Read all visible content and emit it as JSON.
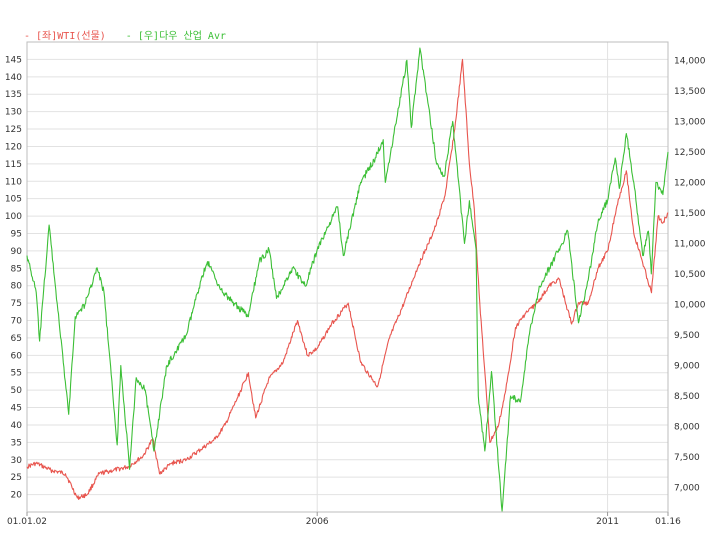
{
  "chart_data": {
    "type": "line",
    "legend": [
      {
        "label": "- [좌]WTI(선물)",
        "color": "#e8554e"
      },
      {
        "label": "- [우]다우 산업 Avr",
        "color": "#3cbf36"
      }
    ],
    "x_tick_labels": [
      "01.01.02",
      "2006",
      "2011",
      "01.16"
    ],
    "x_tick_dates": [
      "2001-01-02",
      "2006-01-01",
      "2011-01-01",
      "2012-01-16"
    ],
    "xlim": [
      "2001-01-02",
      "2012-01-16"
    ],
    "y_left": {
      "ylim": [
        15,
        150
      ],
      "ticks": [
        20,
        25,
        30,
        35,
        40,
        45,
        50,
        55,
        60,
        65,
        70,
        75,
        80,
        85,
        90,
        95,
        100,
        105,
        110,
        115,
        120,
        125,
        130,
        135,
        140,
        145
      ],
      "tick_labels": [
        "20",
        "25",
        "30",
        "35",
        "40",
        "45",
        "50",
        "55",
        "60",
        "65",
        "70",
        "75",
        "80",
        "85",
        "90",
        "95",
        "100",
        "105",
        "110",
        "115",
        "120",
        "125",
        "130",
        "135",
        "140",
        "145"
      ]
    },
    "y_right": {
      "ylim": [
        6600,
        14300
      ],
      "ticks": [
        7000,
        7500,
        8000,
        8500,
        9000,
        9500,
        10000,
        10500,
        11000,
        11500,
        12000,
        12500,
        13000,
        13500,
        14000
      ],
      "tick_labels": [
        "7,000",
        "7,500",
        "8,000",
        "8,500",
        "9,000",
        "9,500",
        "10,000",
        "10,500",
        "11,000",
        "11,500",
        "12,000",
        "12,500",
        "13,000",
        "13,500",
        "14,000"
      ]
    },
    "grid": true,
    "series": [
      {
        "name": "[좌]WTI(선물)",
        "axis": "left",
        "color": "#e8554e",
        "x": [
          "2001-01-02",
          "2001-03-01",
          "2001-06-01",
          "2001-09-01",
          "2001-11-15",
          "2002-01-15",
          "2002-04-01",
          "2002-07-01",
          "2002-10-01",
          "2003-01-01",
          "2003-03-05",
          "2003-04-15",
          "2003-07-01",
          "2003-10-01",
          "2004-01-01",
          "2004-04-01",
          "2004-06-01",
          "2004-08-20",
          "2004-10-25",
          "2004-12-10",
          "2005-03-01",
          "2005-06-01",
          "2005-08-30",
          "2005-11-01",
          "2006-01-01",
          "2006-04-01",
          "2006-07-15",
          "2006-10-01",
          "2007-01-15",
          "2007-04-01",
          "2007-07-01",
          "2007-10-01",
          "2007-12-01",
          "2008-01-15",
          "2008-03-15",
          "2008-05-15",
          "2008-07-03",
          "2008-08-15",
          "2008-09-15",
          "2008-10-15",
          "2008-12-01",
          "2008-12-22",
          "2009-02-15",
          "2009-04-01",
          "2009-06-01",
          "2009-08-01",
          "2009-10-15",
          "2010-01-01",
          "2010-03-01",
          "2010-05-20",
          "2010-07-01",
          "2010-09-01",
          "2010-11-01",
          "2011-01-01",
          "2011-03-01",
          "2011-04-29",
          "2011-06-15",
          "2011-08-01",
          "2011-10-04",
          "2011-11-15",
          "2011-12-15",
          "2012-01-16"
        ],
        "values": [
          28,
          29,
          27,
          26,
          19,
          20,
          26,
          27,
          28,
          31,
          36,
          26,
          29,
          30,
          33,
          36,
          40,
          48,
          55,
          42,
          53,
          58,
          70,
          60,
          62,
          69,
          75,
          58,
          51,
          65,
          75,
          86,
          92,
          97,
          106,
          125,
          145,
          115,
          102,
          78,
          48,
          35,
          40,
          50,
          68,
          72,
          75,
          80,
          82,
          69,
          75,
          75,
          85,
          90,
          103,
          113,
          95,
          88,
          78,
          100,
          98,
          101
        ]
      },
      {
        "name": "[우]다우 산업 Avr",
        "axis": "right",
        "color": "#3cbf36",
        "x": [
          "2001-01-02",
          "2001-03-01",
          "2001-03-22",
          "2001-05-21",
          "2001-09-21",
          "2001-11-01",
          "2002-01-01",
          "2002-03-19",
          "2002-05-01",
          "2002-07-23",
          "2002-08-15",
          "2002-10-09",
          "2002-11-20",
          "2003-01-15",
          "2003-03-11",
          "2003-06-01",
          "2003-10-01",
          "2004-01-01",
          "2004-02-11",
          "2004-05-15",
          "2004-10-25",
          "2005-01-01",
          "2005-03-04",
          "2005-04-20",
          "2005-08-01",
          "2005-10-20",
          "2006-01-01",
          "2006-05-10",
          "2006-06-14",
          "2006-10-01",
          "2007-01-01",
          "2007-02-20",
          "2007-03-05",
          "2007-07-19",
          "2007-08-16",
          "2007-10-09",
          "2008-01-22",
          "2008-03-10",
          "2008-05-02",
          "2008-07-15",
          "2008-08-15",
          "2008-09-26",
          "2008-10-10",
          "2008-11-20",
          "2009-01-01",
          "2009-03-09",
          "2009-05-01",
          "2009-07-01",
          "2009-09-01",
          "2009-11-01",
          "2010-01-01",
          "2010-04-26",
          "2010-07-02",
          "2010-09-01",
          "2010-11-05",
          "2011-01-01",
          "2011-02-18",
          "2011-03-16",
          "2011-04-29",
          "2011-06-15",
          "2011-08-10",
          "2011-09-15",
          "2011-10-03",
          "2011-11-01",
          "2011-12-15",
          "2012-01-16"
        ],
        "values": [
          10800,
          10200,
          9400,
          11300,
          8200,
          9800,
          10000,
          10600,
          10200,
          7700,
          9000,
          7300,
          8800,
          8600,
          7600,
          9000,
          9500,
          10400,
          10700,
          10200,
          9800,
          10700,
          10900,
          10100,
          10600,
          10300,
          10900,
          11600,
          10800,
          12000,
          12400,
          12700,
          12000,
          14000,
          12900,
          14200,
          12300,
          12100,
          13000,
          11000,
          11700,
          10900,
          8500,
          7600,
          8900,
          6600,
          8500,
          8400,
          9600,
          10300,
          10600,
          11200,
          9700,
          10400,
          11400,
          11700,
          12400,
          11900,
          12800,
          12000,
          10800,
          11200,
          10500,
          12000,
          11800,
          12500
        ]
      }
    ]
  }
}
